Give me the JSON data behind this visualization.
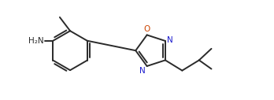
{
  "bg_color": "#ffffff",
  "bond_color": "#2a2a2a",
  "label_color_N": "#1c1ccd",
  "label_color_O": "#cc4400",
  "label_H2N": "H₂N",
  "label_O": "O",
  "label_N": "N",
  "line_width": 1.4,
  "font_size": 7.5
}
